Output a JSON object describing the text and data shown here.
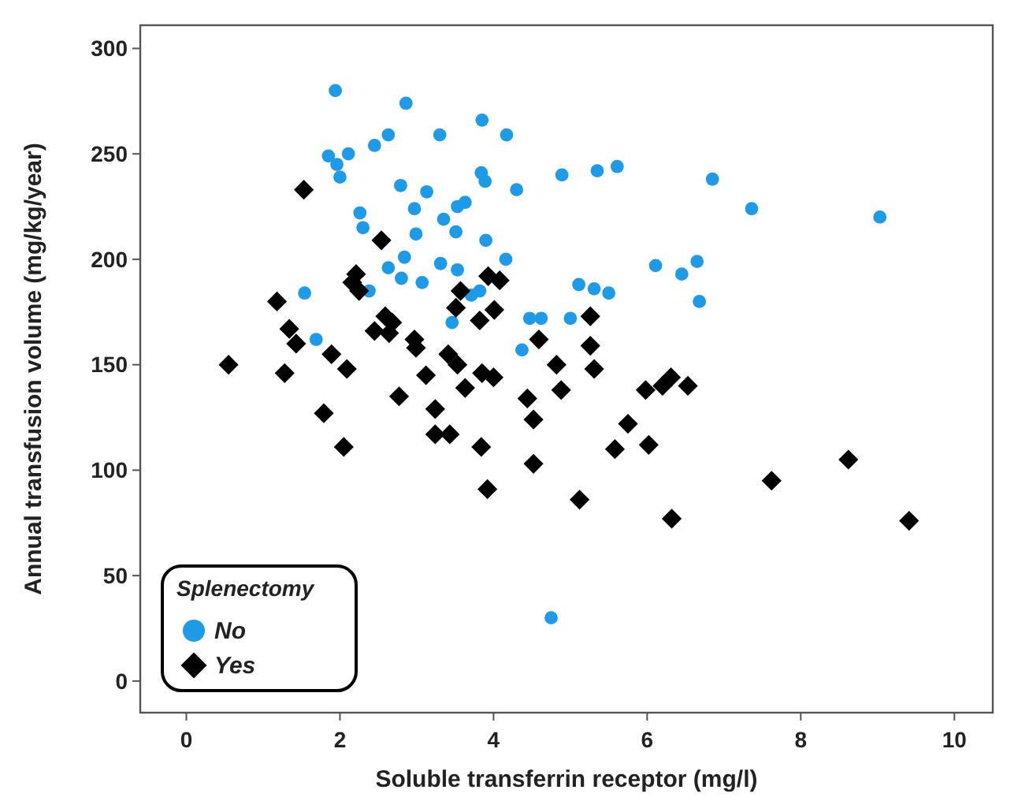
{
  "chart_data": {
    "type": "scatter",
    "xlabel": "Soluble transferrin receptor (mg/l)",
    "ylabel": "Annual transfusion volume (mg/kg/year)",
    "legend_title": "Splenectomy",
    "legend": "bottom left",
    "grid": false,
    "xlim": [
      -0.6,
      10.5
    ],
    "ylim": [
      -15,
      311
    ],
    "xticks": [
      0,
      2,
      4,
      6,
      8,
      10
    ],
    "yticks": [
      0,
      50,
      100,
      150,
      200,
      250,
      300
    ],
    "series": [
      {
        "name": "No",
        "color": "#1e9be8",
        "marker": "circle",
        "x": [
          1.94,
          2.86,
          3.85,
          2.63,
          2.45,
          3.3,
          4.17,
          1.85,
          2.11,
          1.96,
          2.0,
          2.79,
          3.13,
          3.84,
          3.89,
          4.3,
          3.53,
          3.63,
          2.97,
          2.26,
          2.3,
          3.35,
          2.99,
          3.51,
          3.9,
          2.84,
          2.63,
          3.31,
          3.53,
          4.16,
          2.8,
          3.07,
          1.54,
          2.38,
          3.71,
          3.82,
          3.46,
          1.69,
          4.37,
          4.47,
          4.62,
          4.89,
          5.35,
          5.61,
          6.85,
          7.36,
          9.03,
          6.11,
          6.65,
          6.45,
          5.11,
          5.31,
          5.5,
          6.68,
          5.0,
          4.75
        ],
        "values": [
          280,
          274,
          266,
          259,
          254,
          259,
          259,
          249,
          250,
          245,
          239,
          235,
          232,
          241,
          237,
          233,
          225,
          227,
          224,
          222,
          215,
          219,
          212,
          213,
          209,
          201,
          196,
          198,
          195,
          200,
          191,
          189,
          184,
          185,
          183,
          185,
          170,
          162,
          157,
          172,
          172,
          240,
          242,
          244,
          238,
          224,
          220,
          197,
          199,
          193,
          188,
          186,
          184,
          180,
          172,
          30
        ]
      },
      {
        "name": "Yes",
        "color": "#000000",
        "marker": "diamond",
        "x": [
          1.53,
          2.54,
          2.21,
          2.16,
          2.25,
          3.93,
          4.08,
          3.57,
          3.51,
          4.01,
          3.82,
          1.18,
          1.34,
          1.43,
          2.59,
          2.68,
          2.45,
          2.64,
          2.97,
          2.99,
          0.55,
          1.28,
          1.89,
          2.09,
          3.41,
          3.53,
          3.12,
          3.85,
          4.0,
          4.59,
          4.82,
          3.63,
          2.77,
          4.44,
          4.88,
          3.24,
          1.79,
          4.52,
          3.24,
          3.43,
          3.84,
          2.05,
          4.52,
          3.92,
          6.32,
          5.26,
          5.26,
          5.31,
          5.98,
          6.2,
          6.31,
          6.53,
          5.75,
          6.02,
          5.58,
          5.12,
          8.62,
          7.62,
          9.41
        ],
        "values": [
          233,
          209,
          193,
          189,
          185,
          192,
          190,
          185,
          177,
          176,
          171,
          180,
          167,
          160,
          173,
          170,
          166,
          165,
          162,
          158,
          150,
          146,
          155,
          148,
          155,
          150,
          145,
          146,
          144,
          162,
          150,
          139,
          135,
          134,
          138,
          129,
          127,
          124,
          117,
          117,
          111,
          111,
          103,
          91,
          77,
          173,
          159,
          148,
          138,
          140,
          144,
          140,
          122,
          112,
          110,
          86,
          105,
          95,
          76
        ]
      }
    ]
  }
}
